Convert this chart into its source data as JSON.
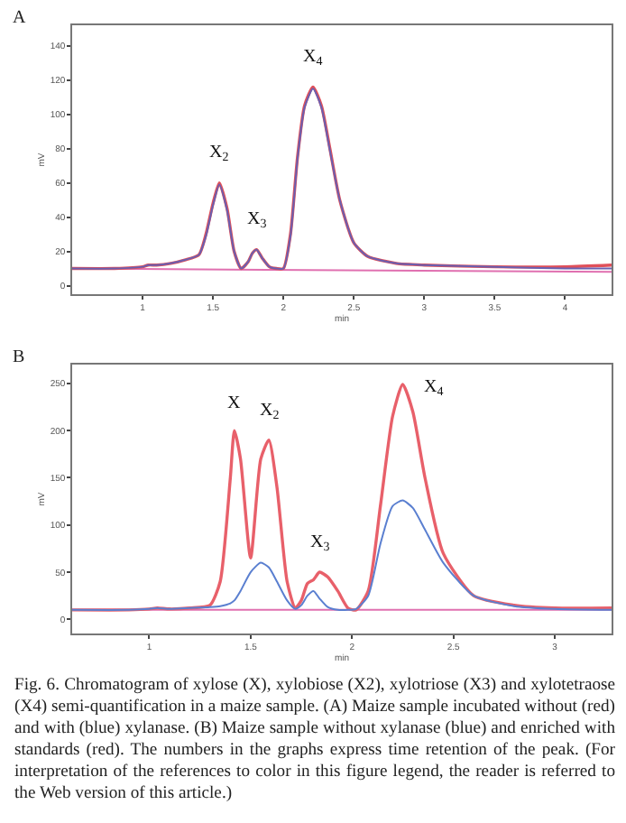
{
  "chart_data": [
    {
      "type": "line",
      "title": "A",
      "xlabel": "min",
      "ylabel": "mV",
      "xlim": [
        0.5,
        4.33
      ],
      "ylim": [
        -5,
        152
      ],
      "xticks": [
        1,
        1.5,
        2,
        2.5,
        3,
        3.5,
        4
      ],
      "yticks": [
        0,
        20,
        40,
        60,
        80,
        100,
        120,
        140
      ],
      "grid": false,
      "x": [
        0.5,
        0.8,
        1.0,
        1.04,
        1.1,
        1.2,
        1.3,
        1.4,
        1.45,
        1.5,
        1.545,
        1.6,
        1.65,
        1.7,
        1.75,
        1.78,
        1.81,
        1.85,
        1.9,
        1.95,
        2.0,
        2.05,
        2.1,
        2.15,
        2.21,
        2.27,
        2.33,
        2.4,
        2.5,
        2.6,
        2.8,
        3.0,
        3.5,
        4.0,
        4.33
      ],
      "series": [
        {
          "color": "#e0505a",
          "values": [
            10,
            10,
            11,
            12,
            12,
            13,
            15,
            18,
            30,
            48,
            60,
            45,
            20,
            10,
            14,
            19,
            21,
            16,
            11,
            10,
            10,
            30,
            75,
            105,
            116,
            105,
            80,
            50,
            25,
            17,
            13,
            12,
            11,
            11,
            12
          ]
        },
        {
          "color": "#6a5fb0",
          "values": [
            10,
            10,
            11,
            12,
            12,
            13,
            15,
            18,
            29,
            47,
            59,
            44,
            20,
            10,
            14,
            19,
            21,
            16,
            11,
            10,
            10,
            29,
            74,
            104,
            115,
            104,
            79,
            50,
            25,
            17,
            13,
            12,
            11,
            10,
            10
          ]
        },
        {
          "color": "#e070b0",
          "x": [
            0.5,
            4.33
          ],
          "values": [
            10,
            8
          ]
        }
      ],
      "annotations": [
        {
          "text": "X$_{2}$",
          "x": 1.545,
          "y": 60
        },
        {
          "text": "X$_{3}$",
          "x": 1.81,
          "y": 21
        },
        {
          "text": "X$_{4}$",
          "x": 2.21,
          "y": 116
        }
      ]
    },
    {
      "type": "line",
      "title": "B",
      "xlabel": "min",
      "ylabel": "mV",
      "xlim": [
        0.62,
        3.28
      ],
      "ylim": [
        -15,
        270
      ],
      "xticks": [
        1,
        1.5,
        2,
        2.5,
        3
      ],
      "yticks": [
        0,
        50,
        100,
        150,
        200,
        250
      ],
      "grid": false,
      "x": [
        0.62,
        0.9,
        1.0,
        1.04,
        1.1,
        1.2,
        1.3,
        1.35,
        1.4,
        1.42,
        1.45,
        1.5,
        1.55,
        1.59,
        1.63,
        1.68,
        1.72,
        1.75,
        1.78,
        1.81,
        1.84,
        1.88,
        1.93,
        1.98,
        2.02,
        2.08,
        2.14,
        2.2,
        2.25,
        2.3,
        2.36,
        2.45,
        2.6,
        2.8,
        3.0,
        3.28
      ],
      "series": [
        {
          "color": "#e8606a",
          "values": [
            10,
            10,
            11,
            12,
            11,
            12,
            15,
            40,
            150,
            200,
            170,
            65,
            170,
            190,
            140,
            40,
            12,
            20,
            38,
            42,
            50,
            45,
            30,
            12,
            10,
            30,
            120,
            215,
            249,
            220,
            150,
            70,
            25,
            15,
            12,
            12
          ]
        },
        {
          "color": "#5a7fd0",
          "values": [
            10,
            10,
            11,
            12,
            11,
            12,
            13,
            14,
            17,
            20,
            30,
            50,
            60,
            55,
            40,
            20,
            11,
            15,
            25,
            30,
            22,
            13,
            10,
            10,
            11,
            25,
            80,
            120,
            126,
            118,
            95,
            60,
            25,
            14,
            11,
            10
          ]
        },
        {
          "color": "#e070b0",
          "x": [
            0.62,
            3.28
          ],
          "values": [
            10,
            10
          ]
        }
      ],
      "annotations": [
        {
          "text": "X",
          "x": 1.42,
          "y": 200
        },
        {
          "text": "X$_{2}$",
          "x": 1.59,
          "y": 190
        },
        {
          "text": "X$_{3}$",
          "x": 1.84,
          "y": 50
        },
        {
          "text": "X$_{4}$",
          "x": 2.25,
          "y": 249
        },
        "Fig. 6. Chromatogram of xylose (X), xylobiose (X2), xylotriose (X3) and xylotetraose (X4) semi-quantification in a maize sample. (A) Maize sample incubated without (red) and with (blue) xylanase. (B) Maize sample without xylanase (blue) and enriched with standards (red). The numbers in the graphs express time retention of the peak. (For interpretation of the references to color in this figure legend, the reader is referred to the Web version of this article.)"
      ]
    }
  ]
}
